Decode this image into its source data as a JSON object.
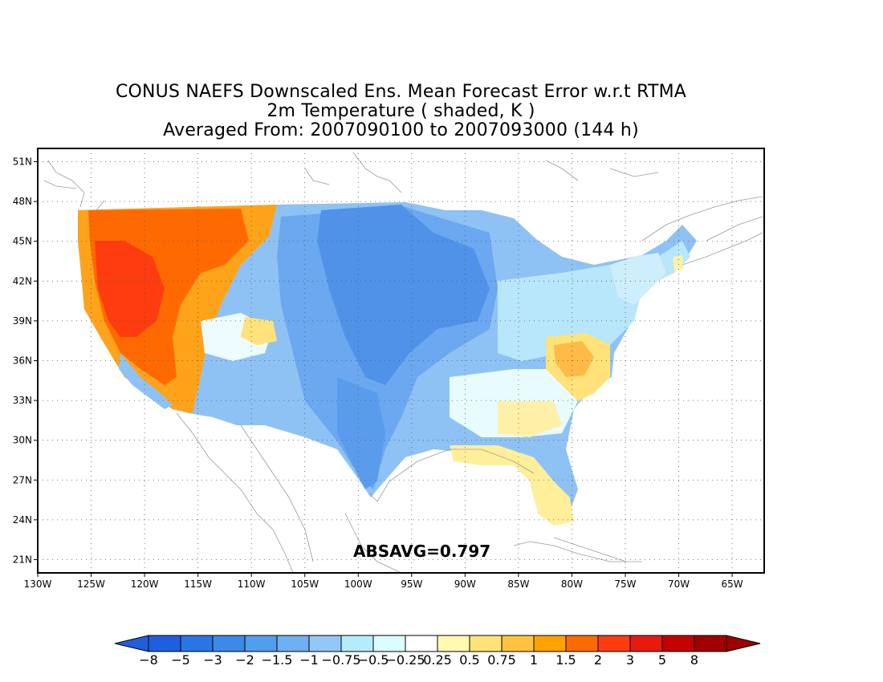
{
  "title": {
    "line1": "CONUS NAEFS Downscaled Ens. Mean Forecast Error w.r.t RTMA",
    "line2": "2m Temperature ( shaded, K )",
    "line3": "Averaged From: 2007090100 to 2007093000 (144 h)"
  },
  "absavg_text": "ABSAVG=0.797",
  "map": {
    "lon_range": [
      -130,
      -62
    ],
    "lat_range": [
      20,
      52
    ],
    "lon_ticks": [
      {
        "value": -130,
        "label": "130W"
      },
      {
        "value": -125,
        "label": "125W"
      },
      {
        "value": -120,
        "label": "120W"
      },
      {
        "value": -115,
        "label": "115W"
      },
      {
        "value": -110,
        "label": "110W"
      },
      {
        "value": -105,
        "label": "105W"
      },
      {
        "value": -100,
        "label": "100W"
      },
      {
        "value": -95,
        "label": "95W"
      },
      {
        "value": -90,
        "label": "90W"
      },
      {
        "value": -85,
        "label": "85W"
      },
      {
        "value": -80,
        "label": "80W"
      },
      {
        "value": -75,
        "label": "75W"
      },
      {
        "value": -70,
        "label": "70W"
      },
      {
        "value": -65,
        "label": "65W"
      }
    ],
    "lat_ticks": [
      {
        "value": 21,
        "label": "21N"
      },
      {
        "value": 24,
        "label": "24N"
      },
      {
        "value": 27,
        "label": "27N"
      },
      {
        "value": 30,
        "label": "30N"
      },
      {
        "value": 33,
        "label": "33N"
      },
      {
        "value": 36,
        "label": "36N"
      },
      {
        "value": 39,
        "label": "39N"
      },
      {
        "value": 42,
        "label": "42N"
      },
      {
        "value": 45,
        "label": "45N"
      },
      {
        "value": 48,
        "label": "48N"
      },
      {
        "value": 51,
        "label": "51N"
      }
    ],
    "grid": "dotted"
  },
  "colorbar": {
    "labels": [
      "−8",
      "−5",
      "−3",
      "−2",
      "−1.5",
      "−1",
      "−0.75",
      "−0.5",
      "−0.25",
      "0.25",
      "0.5",
      "0.75",
      "1",
      "1.5",
      "2",
      "3",
      "5",
      "8"
    ],
    "colors": [
      "#1e5fe0",
      "#2a74e6",
      "#3b8ae8",
      "#519eec",
      "#6fb0f2",
      "#92c8f8",
      "#b4ecfa",
      "#dcfcfe",
      "#ffffff",
      "#fffab0",
      "#ffe37a",
      "#ffc340",
      "#ffa200",
      "#ff6a00",
      "#ff3c10",
      "#e81a10",
      "#c40000",
      "#a00000"
    ]
  }
}
